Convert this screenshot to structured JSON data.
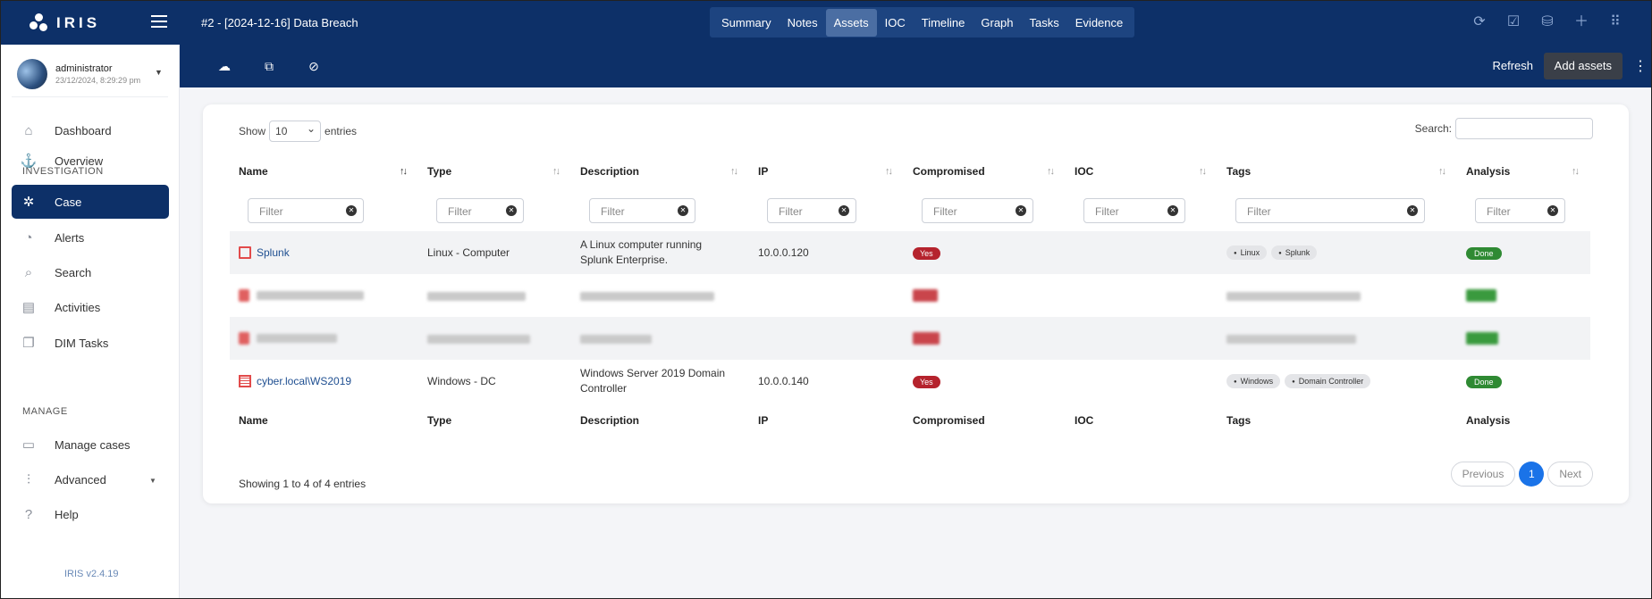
{
  "brand": {
    "name": "IRIS"
  },
  "header": {
    "case_title": "#2 - [2024-12-16] Data Breach"
  },
  "tabs": [
    {
      "label": "Summary"
    },
    {
      "label": "Notes"
    },
    {
      "label": "Assets"
    },
    {
      "label": "IOC"
    },
    {
      "label": "Timeline"
    },
    {
      "label": "Graph"
    },
    {
      "label": "Tasks"
    },
    {
      "label": "Evidence"
    }
  ],
  "active_tab": "Assets",
  "toolbar": {
    "refresh_label": "Refresh",
    "add_assets_label": "Add assets"
  },
  "user": {
    "name": "administrator",
    "datetime": "23/12/2024, 8:29:29 pm"
  },
  "sidebar": {
    "items": [
      {
        "label": "Dashboard",
        "icon": "home-icon"
      },
      {
        "label": "Overview",
        "icon": "anchor-icon"
      },
      {
        "section": "INVESTIGATION"
      },
      {
        "label": "Case",
        "icon": "network-icon",
        "active": true
      },
      {
        "label": "Alerts",
        "icon": "bell-icon"
      },
      {
        "label": "Search",
        "icon": "search-icon"
      },
      {
        "label": "Activities",
        "icon": "file-icon"
      },
      {
        "label": "DIM Tasks",
        "icon": "layers-icon"
      },
      {
        "section": "MANAGE"
      },
      {
        "label": "Manage cases",
        "icon": "folder-icon"
      },
      {
        "label": "Advanced",
        "icon": "sliders-icon"
      },
      {
        "label": "Help",
        "icon": "help-icon"
      }
    ],
    "version": "IRIS v2.4.19"
  },
  "table": {
    "show_label": "Show",
    "entries_value": "10",
    "entries_label": "entries",
    "search_label": "Search:",
    "filter_placeholder": "Filter",
    "columns": [
      "Name",
      "Type",
      "Description",
      "IP",
      "Compromised",
      "IOC",
      "Tags",
      "Analysis"
    ],
    "rows": [
      {
        "name": "Splunk",
        "type": "Linux - Computer",
        "description": "A Linux computer running Splunk Enterprise.",
        "ip": "10.0.0.120",
        "compromised": "Yes",
        "ioc": "",
        "tags": [
          "Linux",
          "Splunk"
        ],
        "analysis": "Done"
      },
      {
        "redacted": true
      },
      {
        "redacted": true
      },
      {
        "name": "cyber.local\\WS2019",
        "type": "Windows - DC",
        "description": "Windows Server 2019 Domain Controller",
        "ip": "10.0.0.140",
        "compromised": "Yes",
        "ioc": "",
        "tags": [
          "Windows",
          "Domain Controller"
        ],
        "analysis": "Done"
      }
    ],
    "info": "Showing 1 to 4 of 4 entries",
    "pagination": {
      "previous": "Previous",
      "current": "1",
      "next": "Next"
    }
  },
  "colors": {
    "navy": "#0d3068",
    "danger": "#b5232d",
    "success": "#2f8a33",
    "link": "#1f4f91",
    "primary": "#1a73e8"
  }
}
